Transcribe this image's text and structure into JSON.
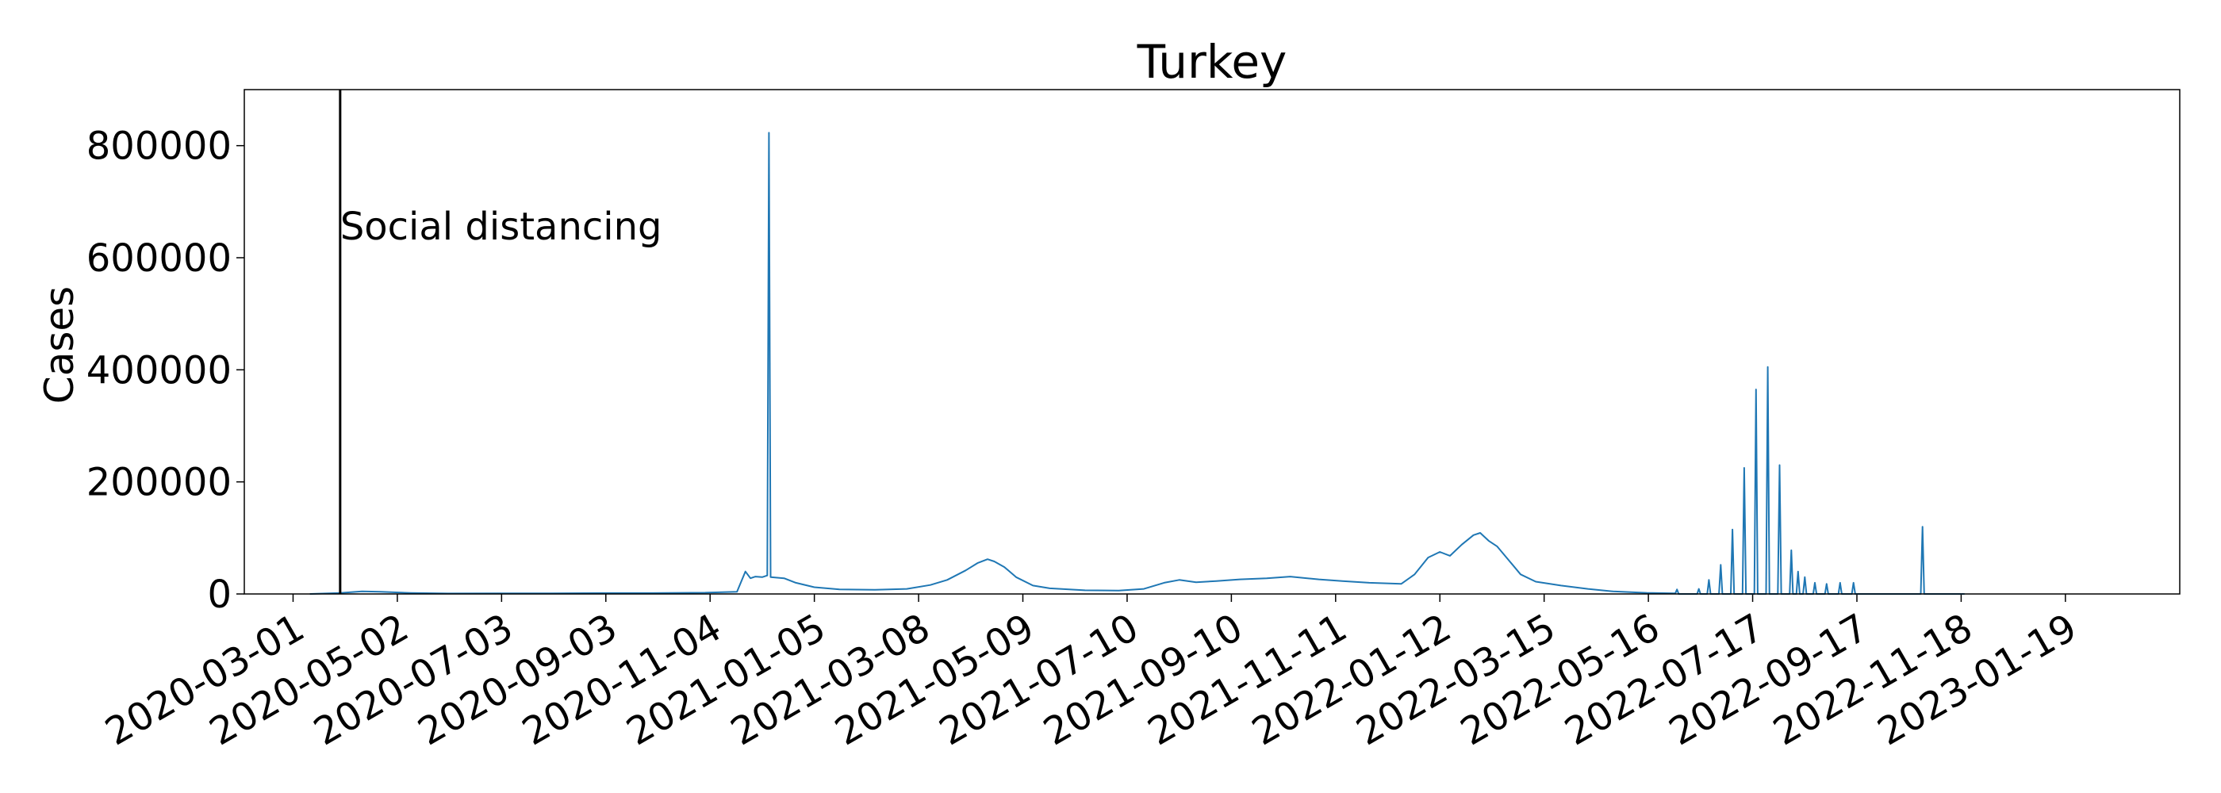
{
  "chart_data": {
    "type": "line",
    "title": "Turkey",
    "xlabel": "",
    "ylabel": "Cases",
    "x_range": [
      "2020-02-01",
      "2023-03-28"
    ],
    "ylim": [
      0,
      900000
    ],
    "yticks": [
      0,
      200000,
      400000,
      600000,
      800000
    ],
    "xticks": [
      "2020-03-01",
      "2020-05-02",
      "2020-07-03",
      "2020-09-03",
      "2020-11-04",
      "2021-01-05",
      "2021-03-08",
      "2021-05-09",
      "2021-07-10",
      "2021-09-10",
      "2021-11-11",
      "2022-01-12",
      "2022-03-15",
      "2022-05-16",
      "2022-07-17",
      "2022-09-17",
      "2022-11-18",
      "2023-01-19"
    ],
    "line_color": "#1f77b4",
    "annotation": {
      "date": "2020-03-29",
      "label": "Social distancing"
    },
    "series": [
      {
        "points": [
          [
            "2020-03-11",
            0
          ],
          [
            "2020-03-29",
            1800
          ],
          [
            "2020-04-11",
            4500
          ],
          [
            "2020-04-22",
            3800
          ],
          [
            "2020-05-10",
            1800
          ],
          [
            "2020-06-01",
            900
          ],
          [
            "2020-07-01",
            1100
          ],
          [
            "2020-08-01",
            1200
          ],
          [
            "2020-09-01",
            1500
          ],
          [
            "2020-10-01",
            1600
          ],
          [
            "2020-11-01",
            2200
          ],
          [
            "2020-11-20",
            4000
          ],
          [
            "2020-11-25",
            40000
          ],
          [
            "2020-11-28",
            28000
          ],
          [
            "2020-12-01",
            31000
          ],
          [
            "2020-12-05",
            30000
          ],
          [
            "2020-12-08",
            33000
          ],
          [
            "2020-12-09",
            823000
          ],
          [
            "2020-12-10",
            30000
          ],
          [
            "2020-12-18",
            28000
          ],
          [
            "2020-12-25",
            20000
          ],
          [
            "2021-01-05",
            12000
          ],
          [
            "2021-01-20",
            8000
          ],
          [
            "2021-02-10",
            7500
          ],
          [
            "2021-03-01",
            9000
          ],
          [
            "2021-03-15",
            16000
          ],
          [
            "2021-03-25",
            25000
          ],
          [
            "2021-04-05",
            42000
          ],
          [
            "2021-04-12",
            55000
          ],
          [
            "2021-04-18",
            62000
          ],
          [
            "2021-04-22",
            58000
          ],
          [
            "2021-04-28",
            48000
          ],
          [
            "2021-05-05",
            30000
          ],
          [
            "2021-05-15",
            15000
          ],
          [
            "2021-05-25",
            10000
          ],
          [
            "2021-06-15",
            6500
          ],
          [
            "2021-07-05",
            6000
          ],
          [
            "2021-07-20",
            9000
          ],
          [
            "2021-08-01",
            20000
          ],
          [
            "2021-08-10",
            25000
          ],
          [
            "2021-08-20",
            21000
          ],
          [
            "2021-09-01",
            23000
          ],
          [
            "2021-09-15",
            26000
          ],
          [
            "2021-10-01",
            28000
          ],
          [
            "2021-10-15",
            31000
          ],
          [
            "2021-11-01",
            26000
          ],
          [
            "2021-11-15",
            23000
          ],
          [
            "2021-12-01",
            20000
          ],
          [
            "2021-12-20",
            18000
          ],
          [
            "2021-12-28",
            35000
          ],
          [
            "2022-01-05",
            65000
          ],
          [
            "2022-01-12",
            75000
          ],
          [
            "2022-01-18",
            68000
          ],
          [
            "2022-01-25",
            88000
          ],
          [
            "2022-02-01",
            105000
          ],
          [
            "2022-02-05",
            109000
          ],
          [
            "2022-02-10",
            95000
          ],
          [
            "2022-02-15",
            85000
          ],
          [
            "2022-02-22",
            60000
          ],
          [
            "2022-03-01",
            35000
          ],
          [
            "2022-03-10",
            22000
          ],
          [
            "2022-03-25",
            15000
          ],
          [
            "2022-04-10",
            9000
          ],
          [
            "2022-04-25",
            4500
          ],
          [
            "2022-05-15",
            2000
          ],
          [
            "2022-06-01",
            1000
          ],
          [
            "2022-06-02",
            8000
          ],
          [
            "2022-06-03",
            0
          ],
          [
            "2022-06-14",
            0
          ],
          [
            "2022-06-15",
            9000
          ],
          [
            "2022-06-16",
            0
          ],
          [
            "2022-06-20",
            0
          ],
          [
            "2022-06-21",
            25000
          ],
          [
            "2022-06-22",
            0
          ],
          [
            "2022-06-27",
            0
          ],
          [
            "2022-06-28",
            52000
          ],
          [
            "2022-06-29",
            0
          ],
          [
            "2022-07-04",
            0
          ],
          [
            "2022-07-05",
            115000
          ],
          [
            "2022-07-06",
            0
          ],
          [
            "2022-07-11",
            0
          ],
          [
            "2022-07-12",
            225000
          ],
          [
            "2022-07-13",
            0
          ],
          [
            "2022-07-18",
            0
          ],
          [
            "2022-07-19",
            365000
          ],
          [
            "2022-07-20",
            0
          ],
          [
            "2022-07-25",
            0
          ],
          [
            "2022-07-26",
            405000
          ],
          [
            "2022-07-27",
            0
          ],
          [
            "2022-08-01",
            0
          ],
          [
            "2022-08-02",
            230000
          ],
          [
            "2022-08-03",
            0
          ],
          [
            "2022-08-08",
            0
          ],
          [
            "2022-08-09",
            78000
          ],
          [
            "2022-08-10",
            0
          ],
          [
            "2022-08-12",
            0
          ],
          [
            "2022-08-13",
            40000
          ],
          [
            "2022-08-14",
            0
          ],
          [
            "2022-08-16",
            0
          ],
          [
            "2022-08-17",
            30000
          ],
          [
            "2022-08-18",
            0
          ],
          [
            "2022-08-22",
            0
          ],
          [
            "2022-08-23",
            20000
          ],
          [
            "2022-08-24",
            0
          ],
          [
            "2022-08-29",
            0
          ],
          [
            "2022-08-30",
            18000
          ],
          [
            "2022-08-31",
            0
          ],
          [
            "2022-09-06",
            0
          ],
          [
            "2022-09-07",
            20000
          ],
          [
            "2022-09-08",
            0
          ],
          [
            "2022-09-14",
            0
          ],
          [
            "2022-09-15",
            20000
          ],
          [
            "2022-09-16",
            0
          ],
          [
            "2022-10-25",
            0
          ],
          [
            "2022-10-26",
            120000
          ],
          [
            "2022-10-27",
            0
          ],
          [
            "2022-11-20",
            0
          ]
        ]
      }
    ]
  }
}
